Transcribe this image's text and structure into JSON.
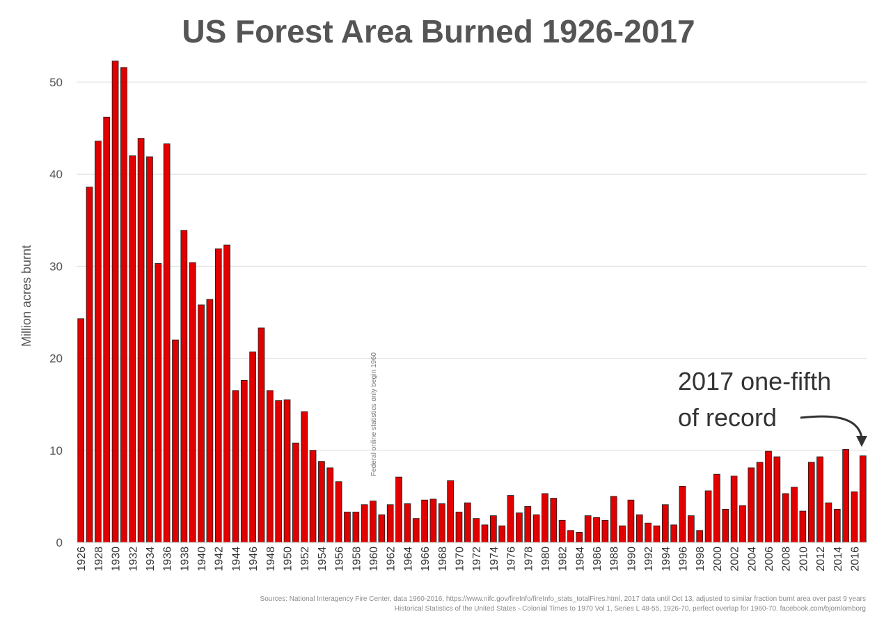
{
  "chart_data": {
    "type": "bar",
    "title": "US Forest Area Burned 1926-2017",
    "ylabel": "Million acres burnt",
    "xlabel": "",
    "ylim": [
      0,
      53
    ],
    "yticks": [
      0,
      10,
      20,
      30,
      40,
      50
    ],
    "grid": true,
    "bar_color": "#e00000",
    "x_tick_labels_every": 2,
    "x": [
      1926,
      1927,
      1928,
      1929,
      1930,
      1931,
      1932,
      1933,
      1934,
      1935,
      1936,
      1937,
      1938,
      1939,
      1940,
      1941,
      1942,
      1943,
      1944,
      1945,
      1946,
      1947,
      1948,
      1949,
      1950,
      1951,
      1952,
      1953,
      1954,
      1955,
      1956,
      1957,
      1958,
      1959,
      1960,
      1961,
      1962,
      1963,
      1964,
      1965,
      1966,
      1967,
      1968,
      1969,
      1970,
      1971,
      1972,
      1973,
      1974,
      1975,
      1976,
      1977,
      1978,
      1979,
      1980,
      1981,
      1982,
      1983,
      1984,
      1985,
      1986,
      1987,
      1988,
      1989,
      1990,
      1991,
      1992,
      1993,
      1994,
      1995,
      1996,
      1997,
      1998,
      1999,
      2000,
      2001,
      2002,
      2003,
      2004,
      2005,
      2006,
      2007,
      2008,
      2009,
      2010,
      2011,
      2012,
      2013,
      2014,
      2015,
      2016,
      2017
    ],
    "values": [
      24.3,
      38.6,
      43.6,
      46.2,
      52.3,
      51.6,
      42.0,
      43.9,
      41.9,
      30.3,
      43.3,
      22.0,
      33.9,
      30.4,
      25.8,
      26.4,
      31.9,
      32.3,
      16.5,
      17.6,
      20.7,
      23.3,
      16.5,
      15.4,
      15.5,
      10.8,
      14.2,
      10.0,
      8.8,
      8.1,
      6.6,
      3.3,
      3.3,
      4.1,
      4.5,
      3.0,
      4.1,
      7.1,
      4.2,
      2.6,
      4.6,
      4.7,
      4.2,
      6.7,
      3.3,
      4.3,
      2.6,
      1.9,
      2.9,
      1.8,
      5.1,
      3.2,
      3.9,
      3.0,
      5.3,
      4.8,
      2.4,
      1.3,
      1.1,
      2.9,
      2.7,
      2.4,
      5.0,
      1.8,
      4.6,
      3.0,
      2.1,
      1.8,
      4.1,
      1.9,
      6.1,
      2.9,
      1.3,
      5.6,
      7.4,
      3.6,
      7.2,
      4.0,
      8.1,
      8.7,
      9.9,
      9.3,
      5.3,
      6.0,
      3.4,
      8.7,
      9.3,
      4.3,
      3.6,
      10.1,
      5.5,
      9.4
    ],
    "annotations": [
      {
        "text": "Federal online statistics only begin 1960",
        "near_x": 1960
      },
      {
        "text_line1": "2017 one-fifth",
        "text_line2": "of record",
        "points_to_x": 2017
      }
    ]
  },
  "footnote": {
    "line1": "Sources: National Interagency Fire Center, data 1960-2016, https://www.nifc.gov/fireInfo/fireInfo_stats_totalFires.html, 2017 data until Oct 13, adjusted to similar fraction burnt area over past 9 years",
    "line2": "Historical Statistics of the United States - Colonial Times to 1970 Vol 1, Series L 48-55, 1926-70, perfect overlap for 1960-70. facebook.com/bjornlomborg"
  }
}
